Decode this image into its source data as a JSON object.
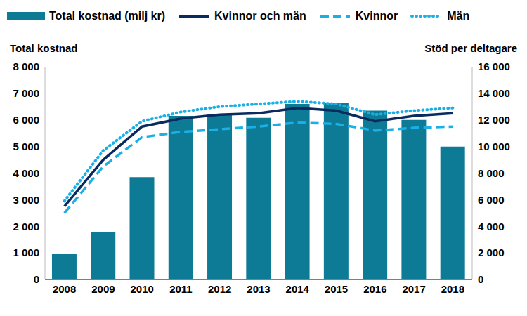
{
  "chart_data": {
    "type": "bar",
    "y_label": "Total kostnad",
    "y2_label": "Stöd per deltagare",
    "categories": [
      "2008",
      "2009",
      "2010",
      "2011",
      "2012",
      "2013",
      "2014",
      "2015",
      "2016",
      "2017",
      "2018"
    ],
    "series": [
      {
        "name": "Total kostnad (milj kr)",
        "type": "bar",
        "color": "#0d7a96",
        "values": [
          950,
          1780,
          3850,
          6150,
          6200,
          6080,
          6600,
          6650,
          6350,
          6000,
          5000
        ]
      },
      {
        "name": "Kvinnor och män",
        "type": "line",
        "axis": "y2",
        "color": "#0b2a5e",
        "line_style": "solid",
        "values": [
          5500,
          9000,
          11500,
          12100,
          12400,
          12500,
          12900,
          12700,
          11900,
          12300,
          12500
        ]
      },
      {
        "name": "Kvinnor",
        "type": "line",
        "axis": "y2",
        "color": "#1ab0e6",
        "line_style": "dashed",
        "values": [
          5000,
          8500,
          10700,
          11100,
          11300,
          11500,
          11800,
          11700,
          11200,
          11400,
          11500
        ]
      },
      {
        "name": "Män",
        "type": "line",
        "axis": "y2",
        "color": "#1ab0e6",
        "line_style": "dotted",
        "values": [
          5900,
          9700,
          11900,
          12600,
          13000,
          13200,
          13400,
          13200,
          12400,
          12700,
          12900
        ]
      }
    ],
    "ylim": [
      0,
      8000
    ],
    "yticks": [
      0,
      {
        "value": 1000,
        "label": "1 000"
      },
      {
        "value": 2000,
        "label": "2 000"
      },
      {
        "value": 3000,
        "label": "3 000"
      },
      {
        "value": 4000,
        "label": "4 000"
      },
      {
        "value": 5000,
        "label": "5 000"
      },
      {
        "value": 6000,
        "label": "6 000"
      },
      {
        "value": 7000,
        "label": "7 000"
      },
      {
        "value": 8000,
        "label": "8 000"
      }
    ],
    "y2lim": [
      0,
      16000
    ],
    "y2ticks": [
      0,
      {
        "value": 2000,
        "label": "2 000"
      },
      {
        "value": 4000,
        "label": "4 000"
      },
      {
        "value": 6000,
        "label": "6 000"
      },
      {
        "value": 8000,
        "label": "8 000"
      },
      {
        "value": 10000,
        "label": "10 000"
      },
      {
        "value": 12000,
        "label": "12 000"
      },
      {
        "value": 14000,
        "label": "14 000"
      },
      {
        "value": 16000,
        "label": "16 000"
      }
    ],
    "legend": "top",
    "grid": false
  }
}
